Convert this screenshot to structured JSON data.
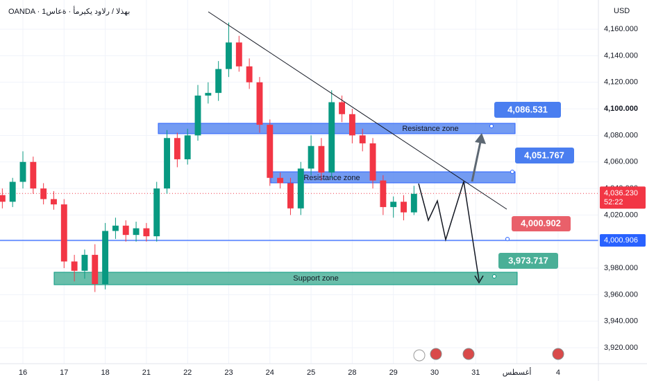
{
  "chart_data": {
    "type": "candlestick",
    "title": "OANDA · بهذلا / رلاود يكيرمأ · ةعاس1",
    "currency": "USD",
    "colors": {
      "up": "#089981",
      "down": "#f23645"
    },
    "xlim": [
      -0.5565,
      13.98
    ],
    "xticks": [
      {
        "value": 0,
        "label": "16"
      },
      {
        "value": 1,
        "label": "17"
      },
      {
        "value": 2,
        "label": "18"
      },
      {
        "value": 3,
        "label": "21"
      },
      {
        "value": 4,
        "label": "22"
      },
      {
        "value": 5,
        "label": "23"
      },
      {
        "value": 6,
        "label": "24"
      },
      {
        "value": 7,
        "label": "25"
      },
      {
        "value": 8,
        "label": "28"
      },
      {
        "value": 9,
        "label": "29"
      },
      {
        "value": 10,
        "label": "30"
      },
      {
        "value": 11,
        "label": "31"
      },
      {
        "value": 12,
        "label": "أغسطس"
      },
      {
        "value": 13,
        "label": "4"
      }
    ],
    "ylim": [
      3908,
      4182
    ],
    "yticks": [
      {
        "value": 3920,
        "label": "3,920.000"
      },
      {
        "value": 3940,
        "label": "3,940.000"
      },
      {
        "value": 3960,
        "label": "3,960.000"
      },
      {
        "value": 3980,
        "label": "3,980.000"
      },
      {
        "value": 4000,
        "label": "4,000.000"
      },
      {
        "value": 4020,
        "label": "4,020.000"
      },
      {
        "value": 4040,
        "label": "4,040.000"
      },
      {
        "value": 4060,
        "label": "4,060.000"
      },
      {
        "value": 4080,
        "label": "4,080.000"
      },
      {
        "value": 4100,
        "label": "4,100.000"
      },
      {
        "value": 4120,
        "label": "4,120.000"
      },
      {
        "value": 4140,
        "label": "4,140.000"
      },
      {
        "value": 4160,
        "label": "4,160.000"
      }
    ],
    "x": [
      -0.5,
      -0.25,
      0,
      0.25,
      0.5,
      0.75,
      1,
      1.25,
      1.5,
      1.75,
      2,
      2.25,
      2.5,
      2.75,
      3,
      3.25,
      3.5,
      3.75,
      4,
      4.25,
      4.5,
      4.75,
      5,
      5.25,
      5.5,
      5.75,
      6,
      6.25,
      6.5,
      6.75,
      7,
      7.25,
      7.5,
      7.75,
      8,
      8.25,
      8.5,
      8.75,
      9,
      9.25,
      9.5
    ],
    "open": [
      4035,
      4030,
      4045,
      4060,
      4040,
      4032,
      4028,
      3985,
      3978,
      3990,
      3968,
      4008,
      4012,
      4005,
      4010,
      4004,
      4040,
      4078,
      4062,
      4080,
      4110,
      4112,
      4130,
      4150,
      4132,
      4120,
      4088,
      4048,
      4044,
      4025,
      4055,
      4072,
      4052,
      4105,
      4096,
      4080,
      4074,
      4046,
      4026,
      4030,
      4022
    ],
    "high": [
      4040,
      4048,
      4068,
      4064,
      4044,
      4038,
      4032,
      3990,
      3994,
      3998,
      4014,
      4018,
      4016,
      4015,
      4014,
      4045,
      4084,
      4082,
      4085,
      4118,
      4120,
      4136,
      4165,
      4155,
      4138,
      4124,
      4092,
      4052,
      4048,
      4060,
      4080,
      4078,
      4114,
      4110,
      4100,
      4085,
      4078,
      4050,
      4034,
      4035,
      4042
    ],
    "low": [
      4025,
      4026,
      4040,
      4036,
      4028,
      4024,
      3980,
      3970,
      3972,
      3962,
      3964,
      4002,
      4000,
      4000,
      4000,
      4000,
      4036,
      4056,
      4058,
      4076,
      4104,
      4106,
      4124,
      4128,
      4115,
      4082,
      4042,
      4040,
      4020,
      4020,
      4050,
      4046,
      4048,
      4090,
      4074,
      4068,
      4040,
      4020,
      4018,
      4016,
      4020
    ],
    "close": [
      4030,
      4045,
      4060,
      4040,
      4032,
      4028,
      3985,
      3978,
      3990,
      3968,
      4008,
      4012,
      4005,
      4010,
      4004,
      4040,
      4078,
      4062,
      4080,
      4110,
      4112,
      4130,
      4150,
      4132,
      4120,
      4088,
      4048,
      4044,
      4025,
      4055,
      4072,
      4052,
      4105,
      4096,
      4080,
      4074,
      4046,
      4026,
      4030,
      4022,
      4036
    ],
    "zones": [
      {
        "label": "Resistance zone"
      },
      {
        "label": "Resistance zone"
      },
      {
        "label": "Support zone"
      }
    ],
    "annotations": [
      "4,086.531",
      "4,051.767",
      "4,000.902",
      "3,973.717"
    ],
    "last_price": {
      "value": 4036.23,
      "label": "4,036.230",
      "countdown": "52:22"
    },
    "level": {
      "value": 4000.906,
      "label": "4,000.906"
    }
  }
}
